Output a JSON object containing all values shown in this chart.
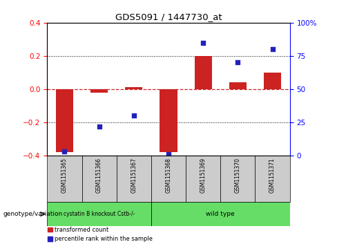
{
  "title": "GDS5091 / 1447730_at",
  "samples": [
    "GSM1151365",
    "GSM1151366",
    "GSM1151367",
    "GSM1151368",
    "GSM1151369",
    "GSM1151370",
    "GSM1151371"
  ],
  "bar_values": [
    -0.38,
    -0.02,
    0.01,
    -0.38,
    0.2,
    0.04,
    0.1
  ],
  "dot_pct": [
    3,
    22,
    30,
    1,
    85,
    70,
    80
  ],
  "ylim_left": [
    -0.4,
    0.4
  ],
  "ylim_right": [
    0,
    100
  ],
  "yticks_left": [
    -0.4,
    -0.2,
    0.0,
    0.2,
    0.4
  ],
  "yticks_right": [
    0,
    25,
    50,
    75,
    100
  ],
  "ytick_labels_right": [
    "0",
    "25",
    "50",
    "75",
    "100%"
  ],
  "bar_color": "#cc2222",
  "dot_color": "#2222bb",
  "hline_color": "#cc2222",
  "grid_color": "#000000",
  "group1_label": "cystatin B knockout Cstb-/-",
  "group2_label": "wild type",
  "group1_count": 3,
  "group2_count": 4,
  "group_color": "#66dd66",
  "group_label_text": "genotype/variation",
  "legend_items": [
    {
      "label": "transformed count",
      "color": "#cc2222"
    },
    {
      "label": "percentile rank within the sample",
      "color": "#2222bb"
    }
  ],
  "bg_color": "#ffffff",
  "sample_bg": "#cccccc"
}
